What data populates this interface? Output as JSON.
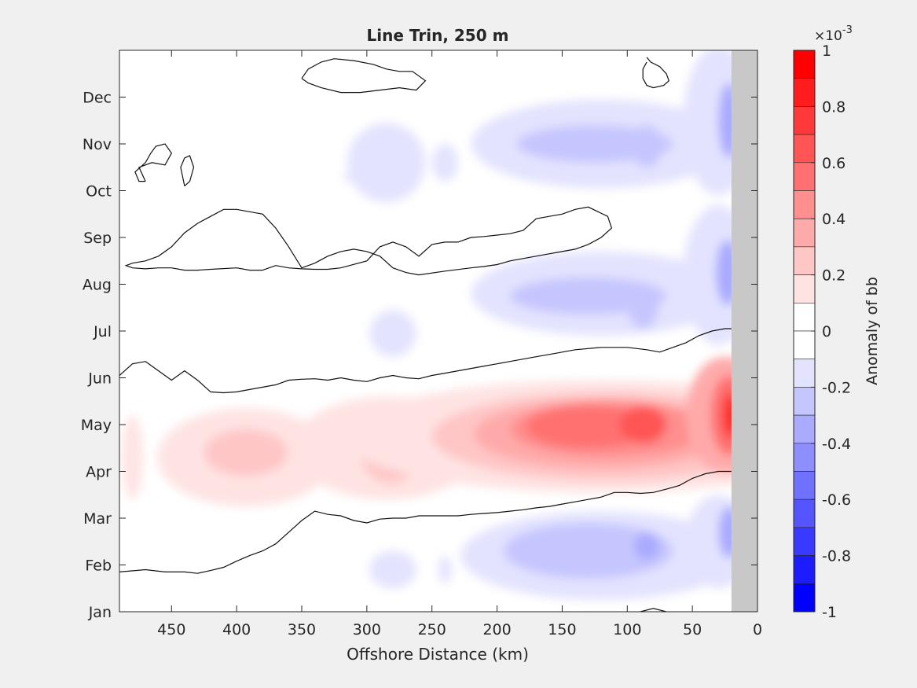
{
  "chart_data": {
    "type": "heatmap",
    "title": "Line Trin, 250 m",
    "xlabel": "Offshore Distance (km)",
    "ylabel": "",
    "x_reversed": true,
    "xlim": [
      490,
      0
    ],
    "x_ticks": [
      {
        "value": 450,
        "label": "450"
      },
      {
        "value": 400,
        "label": "400"
      },
      {
        "value": 350,
        "label": "350"
      },
      {
        "value": 300,
        "label": "300"
      },
      {
        "value": 250,
        "label": "250"
      },
      {
        "value": 200,
        "label": "200"
      },
      {
        "value": 150,
        "label": "150"
      },
      {
        "value": 100,
        "label": "100"
      },
      {
        "value": 50,
        "label": "50"
      },
      {
        "value": 0,
        "label": "0"
      }
    ],
    "ylim": [
      1,
      13
    ],
    "y_ticks": [
      {
        "value": 1,
        "label": "Jan"
      },
      {
        "value": 2,
        "label": "Feb"
      },
      {
        "value": 3,
        "label": "Mar"
      },
      {
        "value": 4,
        "label": "Apr"
      },
      {
        "value": 5,
        "label": "May"
      },
      {
        "value": 6,
        "label": "Jun"
      },
      {
        "value": 7,
        "label": "Jul"
      },
      {
        "value": 8,
        "label": "Aug"
      },
      {
        "value": 9,
        "label": "Sep"
      },
      {
        "value": 10,
        "label": "Oct"
      },
      {
        "value": 11,
        "label": "Nov"
      },
      {
        "value": 12,
        "label": "Dec"
      }
    ],
    "land_mask_x_range": [
      0,
      20
    ],
    "land_color": "#c8c8c8",
    "colorbar": {
      "label": "Anomaly of bb",
      "exponent_label": "×10",
      "exponent_power": "-3",
      "range": [
        -1,
        1
      ],
      "tick_values": [
        1,
        0.8,
        0.6,
        0.4,
        0.2,
        0,
        -0.2,
        -0.4,
        -0.6,
        -0.8,
        -1
      ],
      "tick_labels": [
        "1",
        "0.8",
        "0.6",
        "0.4",
        "0.2",
        "0",
        "-0.2",
        "-0.4",
        "-0.6",
        "-0.8",
        "-1"
      ],
      "levels": [
        {
          "range": [
            0.9,
            1.0
          ],
          "color": "#ff0000"
        },
        {
          "range": [
            0.8,
            0.9
          ],
          "color": "#ff1c1c"
        },
        {
          "range": [
            0.7,
            0.8
          ],
          "color": "#ff3939"
        },
        {
          "range": [
            0.6,
            0.7
          ],
          "color": "#ff5555"
        },
        {
          "range": [
            0.5,
            0.6
          ],
          "color": "#ff7171"
        },
        {
          "range": [
            0.4,
            0.5
          ],
          "color": "#ff8e8e"
        },
        {
          "range": [
            0.3,
            0.4
          ],
          "color": "#ffaaaa"
        },
        {
          "range": [
            0.2,
            0.3
          ],
          "color": "#ffc6c6"
        },
        {
          "range": [
            0.1,
            0.2
          ],
          "color": "#ffe3e3"
        },
        {
          "range": [
            0.0,
            0.1
          ],
          "color": "#ffffff"
        },
        {
          "range": [
            -0.1,
            0.0
          ],
          "color": "#ffffff"
        },
        {
          "range": [
            -0.2,
            -0.1
          ],
          "color": "#e3e3ff"
        },
        {
          "range": [
            -0.3,
            -0.2
          ],
          "color": "#c6c6ff"
        },
        {
          "range": [
            -0.4,
            -0.3
          ],
          "color": "#aaaaff"
        },
        {
          "range": [
            -0.5,
            -0.4
          ],
          "color": "#8e8eff"
        },
        {
          "range": [
            -0.6,
            -0.5
          ],
          "color": "#7171ff"
        },
        {
          "range": [
            -0.7,
            -0.6
          ],
          "color": "#5555ff"
        },
        {
          "range": [
            -0.8,
            -0.7
          ],
          "color": "#3939ff"
        },
        {
          "range": [
            -0.9,
            -0.8
          ],
          "color": "#1c1cff"
        },
        {
          "range": [
            -1.0,
            -0.9
          ],
          "color": "#0000ff"
        }
      ]
    },
    "anomaly_cells": [
      {
        "x": 480,
        "y": 4.3,
        "rx": 8,
        "ry": 0.9,
        "value": 0.15
      },
      {
        "x": 393,
        "y": 4.3,
        "rx": 68,
        "ry": 1.05,
        "value": 0.15
      },
      {
        "x": 393,
        "y": 4.4,
        "rx": 32,
        "ry": 0.5,
        "value": 0.25
      },
      {
        "x": 285,
        "y": 4.5,
        "rx": 72,
        "ry": 1.1,
        "value": 0.15
      },
      {
        "x": 282,
        "y": 4.5,
        "rx": 24,
        "ry": 0.75,
        "value": 0.25
      },
      {
        "x": 282,
        "y": 4.5,
        "rx": 12,
        "ry": 0.45,
        "value": 0.35
      },
      {
        "x": 120,
        "y": 4.75,
        "rx": 200,
        "ry": 1.2,
        "value": 0.15
      },
      {
        "x": 115,
        "y": 4.75,
        "rx": 135,
        "ry": 0.95,
        "value": 0.25
      },
      {
        "x": 120,
        "y": 4.8,
        "rx": 98,
        "ry": 0.75,
        "value": 0.35
      },
      {
        "x": 115,
        "y": 4.9,
        "rx": 75,
        "ry": 0.6,
        "value": 0.45
      },
      {
        "x": 130,
        "y": 4.95,
        "rx": 48,
        "ry": 0.45,
        "value": 0.55
      },
      {
        "x": 88,
        "y": 5.0,
        "rx": 18,
        "ry": 0.4,
        "value": 0.65
      },
      {
        "x": 25,
        "y": 5.2,
        "rx": 30,
        "ry": 1.25,
        "value": 0.35
      },
      {
        "x": 22,
        "y": 5.2,
        "rx": 14,
        "ry": 0.85,
        "value": 0.55
      },
      {
        "x": 21,
        "y": 5.2,
        "rx": 6,
        "ry": 0.5,
        "value": 0.75
      },
      {
        "x": 20,
        "y": 5.2,
        "rx": 3,
        "ry": 0.35,
        "value": 0.85
      },
      {
        "x": 280,
        "y": 1.9,
        "rx": 18,
        "ry": 0.4,
        "value": -0.15
      },
      {
        "x": 240,
        "y": 1.9,
        "rx": 5,
        "ry": 0.3,
        "value": -0.15
      },
      {
        "x": 120,
        "y": 2.2,
        "rx": 108,
        "ry": 0.95,
        "value": -0.15
      },
      {
        "x": 130,
        "y": 2.3,
        "rx": 65,
        "ry": 0.6,
        "value": -0.25
      },
      {
        "x": 85,
        "y": 2.4,
        "rx": 10,
        "ry": 0.3,
        "value": -0.35
      },
      {
        "x": 30,
        "y": 2.5,
        "rx": 25,
        "ry": 1.0,
        "value": -0.15
      },
      {
        "x": 22,
        "y": 2.7,
        "rx": 8,
        "ry": 0.55,
        "value": -0.35
      },
      {
        "x": 280,
        "y": 6.95,
        "rx": 18,
        "ry": 0.5,
        "value": -0.15
      },
      {
        "x": 120,
        "y": 7.8,
        "rx": 100,
        "ry": 0.9,
        "value": -0.15
      },
      {
        "x": 130,
        "y": 7.75,
        "rx": 60,
        "ry": 0.4,
        "value": -0.25
      },
      {
        "x": 88,
        "y": 7.55,
        "rx": 12,
        "ry": 0.5,
        "value": -0.3
      },
      {
        "x": 30,
        "y": 8.2,
        "rx": 27,
        "ry": 1.5,
        "value": -0.15
      },
      {
        "x": 23,
        "y": 8.25,
        "rx": 9,
        "ry": 0.7,
        "value": -0.35
      },
      {
        "x": 285,
        "y": 10.6,
        "rx": 30,
        "ry": 0.85,
        "value": -0.15
      },
      {
        "x": 240,
        "y": 10.6,
        "rx": 10,
        "ry": 0.4,
        "value": -0.15
      },
      {
        "x": 312,
        "y": 10.3,
        "rx": 6,
        "ry": 0.1,
        "value": -0.15
      },
      {
        "x": 120,
        "y": 11.0,
        "rx": 100,
        "ry": 0.95,
        "value": -0.15
      },
      {
        "x": 125,
        "y": 11.0,
        "rx": 60,
        "ry": 0.4,
        "value": -0.25
      },
      {
        "x": 85,
        "y": 10.95,
        "rx": 12,
        "ry": 0.45,
        "value": -0.3
      },
      {
        "x": 30,
        "y": 11.5,
        "rx": 27,
        "ry": 1.6,
        "value": -0.15
      },
      {
        "x": 22,
        "y": 11.5,
        "rx": 8,
        "ry": 0.8,
        "value": -0.35
      }
    ],
    "zero_contours": [
      [
        [
          490,
          1.85
        ],
        [
          470,
          1.9
        ],
        [
          455,
          1.85
        ],
        [
          440,
          1.85
        ],
        [
          430,
          1.82
        ],
        [
          420,
          1.88
        ],
        [
          410,
          1.95
        ],
        [
          400,
          2.08
        ],
        [
          390,
          2.2
        ],
        [
          380,
          2.3
        ],
        [
          370,
          2.45
        ],
        [
          360,
          2.7
        ],
        [
          350,
          2.95
        ],
        [
          340,
          3.15
        ],
        [
          330,
          3.08
        ],
        [
          320,
          3.05
        ],
        [
          310,
          2.95
        ],
        [
          300,
          2.9
        ],
        [
          290,
          2.98
        ],
        [
          280,
          3.0
        ],
        [
          270,
          3.0
        ],
        [
          260,
          3.05
        ],
        [
          250,
          3.05
        ],
        [
          240,
          3.05
        ],
        [
          230,
          3.05
        ],
        [
          220,
          3.08
        ],
        [
          210,
          3.1
        ],
        [
          200,
          3.12
        ],
        [
          190,
          3.15
        ],
        [
          180,
          3.18
        ],
        [
          170,
          3.22
        ],
        [
          160,
          3.25
        ],
        [
          150,
          3.3
        ],
        [
          140,
          3.35
        ],
        [
          130,
          3.4
        ],
        [
          120,
          3.45
        ],
        [
          110,
          3.55
        ],
        [
          100,
          3.55
        ],
        [
          90,
          3.53
        ],
        [
          80,
          3.55
        ],
        [
          70,
          3.62
        ],
        [
          60,
          3.7
        ],
        [
          50,
          3.85
        ],
        [
          40,
          3.95
        ],
        [
          30,
          4.0
        ],
        [
          20,
          4.0
        ]
      ],
      [
        [
          490,
          6.05
        ],
        [
          480,
          6.3
        ],
        [
          470,
          6.35
        ],
        [
          460,
          6.15
        ],
        [
          450,
          5.95
        ],
        [
          440,
          6.15
        ],
        [
          430,
          5.95
        ],
        [
          420,
          5.7
        ],
        [
          410,
          5.68
        ],
        [
          400,
          5.7
        ],
        [
          390,
          5.75
        ],
        [
          380,
          5.8
        ],
        [
          370,
          5.85
        ],
        [
          360,
          5.95
        ],
        [
          350,
          5.97
        ],
        [
          340,
          5.98
        ],
        [
          330,
          5.95
        ],
        [
          320,
          6.0
        ],
        [
          310,
          5.95
        ],
        [
          300,
          5.92
        ],
        [
          290,
          6.0
        ],
        [
          280,
          6.05
        ],
        [
          270,
          6.0
        ],
        [
          260,
          5.98
        ],
        [
          250,
          6.05
        ],
        [
          240,
          6.1
        ],
        [
          230,
          6.15
        ],
        [
          220,
          6.2
        ],
        [
          210,
          6.25
        ],
        [
          200,
          6.3
        ],
        [
          190,
          6.35
        ],
        [
          180,
          6.4
        ],
        [
          170,
          6.45
        ],
        [
          160,
          6.5
        ],
        [
          150,
          6.55
        ],
        [
          140,
          6.6
        ],
        [
          120,
          6.65
        ],
        [
          100,
          6.65
        ],
        [
          85,
          6.6
        ],
        [
          75,
          6.55
        ],
        [
          65,
          6.65
        ],
        [
          55,
          6.75
        ],
        [
          45,
          6.9
        ],
        [
          35,
          7.0
        ],
        [
          25,
          7.05
        ],
        [
          20,
          7.05
        ]
      ],
      [
        [
          380,
          8.3
        ],
        [
          370,
          8.4
        ],
        [
          360,
          8.35
        ],
        [
          350,
          8.33
        ],
        [
          340,
          8.32
        ],
        [
          330,
          8.32
        ],
        [
          320,
          8.35
        ],
        [
          300,
          8.5
        ],
        [
          290,
          8.8
        ],
        [
          280,
          8.9
        ],
        [
          270,
          8.8
        ],
        [
          260,
          8.6
        ],
        [
          250,
          8.85
        ],
        [
          240,
          8.9
        ],
        [
          230,
          8.9
        ],
        [
          220,
          9.0
        ],
        [
          210,
          9.02
        ],
        [
          200,
          9.05
        ],
        [
          190,
          9.08
        ],
        [
          180,
          9.15
        ],
        [
          170,
          9.4
        ],
        [
          160,
          9.45
        ],
        [
          150,
          9.5
        ],
        [
          140,
          9.6
        ],
        [
          130,
          9.65
        ],
        [
          115,
          9.45
        ],
        [
          112,
          9.2
        ],
        [
          120,
          9.0
        ],
        [
          130,
          8.85
        ],
        [
          140,
          8.75
        ],
        [
          150,
          8.7
        ],
        [
          160,
          8.65
        ],
        [
          170,
          8.6
        ],
        [
          180,
          8.55
        ],
        [
          190,
          8.5
        ],
        [
          200,
          8.42
        ],
        [
          210,
          8.38
        ],
        [
          220,
          8.35
        ],
        [
          240,
          8.28
        ],
        [
          260,
          8.2
        ],
        [
          270,
          8.25
        ],
        [
          280,
          8.35
        ],
        [
          290,
          8.6
        ],
        [
          300,
          8.7
        ],
        [
          310,
          8.75
        ],
        [
          320,
          8.7
        ],
        [
          330,
          8.6
        ],
        [
          340,
          8.45
        ],
        [
          350,
          8.35
        ],
        [
          360,
          8.8
        ],
        [
          370,
          9.2
        ],
        [
          380,
          9.5
        ],
        [
          390,
          9.55
        ],
        [
          400,
          9.6
        ],
        [
          410,
          9.6
        ],
        [
          420,
          9.45
        ],
        [
          430,
          9.3
        ],
        [
          440,
          9.1
        ],
        [
          450,
          8.8
        ],
        [
          460,
          8.6
        ],
        [
          470,
          8.5
        ],
        [
          480,
          8.45
        ],
        [
          485,
          8.4
        ],
        [
          480,
          8.35
        ],
        [
          470,
          8.33
        ],
        [
          460,
          8.35
        ],
        [
          450,
          8.35
        ],
        [
          440,
          8.3
        ],
        [
          430,
          8.3
        ],
        [
          420,
          8.32
        ],
        [
          400,
          8.35
        ],
        [
          390,
          8.3
        ],
        [
          380,
          8.3
        ]
      ],
      [
        [
          350,
          12.4
        ],
        [
          345,
          12.6
        ],
        [
          335,
          12.75
        ],
        [
          325,
          12.82
        ],
        [
          310,
          12.78
        ],
        [
          295,
          12.7
        ],
        [
          285,
          12.6
        ],
        [
          275,
          12.55
        ],
        [
          265,
          12.55
        ],
        [
          255,
          12.35
        ],
        [
          262,
          12.15
        ],
        [
          275,
          12.2
        ],
        [
          290,
          12.15
        ],
        [
          305,
          12.1
        ],
        [
          320,
          12.1
        ],
        [
          335,
          12.2
        ],
        [
          345,
          12.3
        ],
        [
          350,
          12.4
        ]
      ],
      [
        [
          85,
          12.85
        ],
        [
          82,
          12.75
        ],
        [
          75,
          12.65
        ],
        [
          70,
          12.5
        ],
        [
          68,
          12.35
        ],
        [
          72,
          12.25
        ],
        [
          80,
          12.2
        ],
        [
          85,
          12.25
        ],
        [
          88,
          12.4
        ],
        [
          88,
          12.6
        ],
        [
          85,
          12.75
        ]
      ],
      [
        [
          470,
          10.2
        ],
        [
          475,
          10.5
        ],
        [
          465,
          10.6
        ],
        [
          455,
          10.55
        ],
        [
          450,
          10.8
        ],
        [
          455,
          11.0
        ],
        [
          462,
          10.95
        ],
        [
          466,
          10.8
        ],
        [
          470,
          10.6
        ],
        [
          478,
          10.4
        ],
        [
          475,
          10.2
        ],
        [
          470,
          10.2
        ]
      ],
      [
        [
          440,
          10.1
        ],
        [
          443,
          10.5
        ],
        [
          440,
          10.7
        ],
        [
          436,
          10.75
        ],
        [
          433,
          10.5
        ],
        [
          436,
          10.2
        ],
        [
          440,
          10.1
        ]
      ],
      [
        [
          90,
          1.0
        ],
        [
          80,
          1.07
        ],
        [
          70,
          1.0
        ]
      ]
    ]
  }
}
